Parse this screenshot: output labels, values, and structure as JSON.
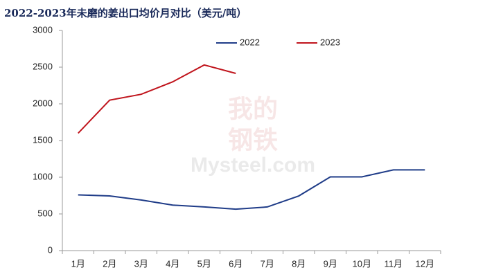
{
  "chart_data": {
    "type": "line",
    "title": "2022-2023年未磨的姜出口均价月对比（美元/吨）",
    "watermark": [
      "我的",
      "钢铁",
      "Mysteel.com"
    ],
    "categories": [
      "1月",
      "2月",
      "3月",
      "4月",
      "5月",
      "6月",
      "7月",
      "8月",
      "9月",
      "10月",
      "11月",
      "12月"
    ],
    "series": [
      {
        "name": "2022",
        "color": "#1f3c88",
        "values": [
          760,
          745,
          690,
          620,
          595,
          565,
          595,
          745,
          1005,
          1005,
          1100,
          1100
        ]
      },
      {
        "name": "2023",
        "color": "#c0141c",
        "values": [
          1600,
          2050,
          2130,
          2300,
          2530,
          2415,
          null,
          null,
          null,
          null,
          null,
          null
        ]
      }
    ],
    "ylim": [
      0,
      3000
    ],
    "yticks": [
      0,
      500,
      1000,
      1500,
      2000,
      2500,
      3000
    ],
    "legend": "top",
    "grid": false
  }
}
